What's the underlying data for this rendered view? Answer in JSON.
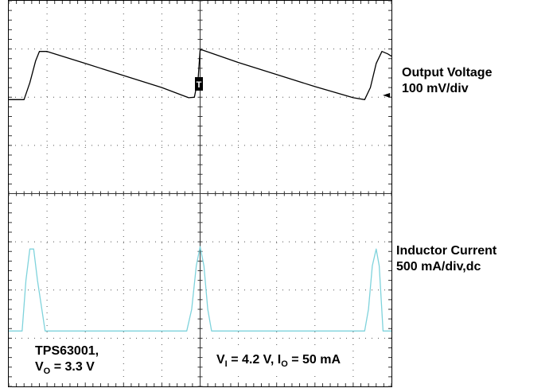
{
  "chart_data": {
    "type": "line",
    "title": "",
    "xlabel": "",
    "ylabel": "",
    "grid": true,
    "divisions": {
      "x": 10,
      "y": 8
    },
    "xlim": [
      0,
      10
    ],
    "ylim": [
      0,
      8
    ],
    "series": [
      {
        "name": "Output Voltage",
        "color": "#000000",
        "scale": "100 mV/div",
        "x": [
          0,
          0.4,
          0.55,
          0.7,
          0.8,
          1.0,
          2.0,
          3.0,
          4.0,
          4.7,
          4.85,
          4.95,
          5.0,
          5.05,
          6.0,
          7.0,
          8.0,
          9.0,
          9.3,
          9.45,
          9.6,
          9.75,
          9.9,
          10.0
        ],
        "y": [
          5.95,
          5.95,
          6.3,
          6.75,
          6.95,
          6.95,
          6.7,
          6.45,
          6.2,
          5.99,
          6.0,
          6.4,
          6.98,
          6.98,
          6.72,
          6.47,
          6.22,
          5.99,
          5.95,
          6.2,
          6.7,
          6.95,
          6.9,
          6.85
        ]
      },
      {
        "name": "Inductor Current",
        "color": "#7fd3dc",
        "scale": "500 mA/div,dc",
        "x": [
          0,
          0.35,
          0.45,
          0.55,
          0.65,
          0.75,
          0.95,
          4.65,
          4.78,
          4.9,
          5.0,
          5.1,
          5.2,
          5.3,
          9.3,
          9.4,
          9.5,
          9.6,
          9.68,
          9.78,
          10.0
        ],
        "y": [
          1.15,
          1.15,
          2.2,
          2.85,
          2.85,
          2.2,
          1.15,
          1.15,
          1.6,
          2.5,
          2.9,
          2.5,
          1.6,
          1.15,
          1.15,
          1.6,
          2.5,
          2.85,
          2.5,
          1.15,
          1.15
        ]
      }
    ],
    "annotations": {
      "output_voltage_name": "Output Voltage",
      "output_voltage_scale": "100 mV/div",
      "inductor_current_name": "Inductor Current",
      "inductor_current_scale": "500 mA/div,dc",
      "device_line1": "TPS63001,",
      "device_vo_prefix": "V",
      "device_vo_sub": "O",
      "device_vo_value": "= 3.3 V",
      "cond_v_prefix": "V",
      "cond_v_sub": "I",
      "cond_v_value": "= 4.2 V, I",
      "cond_i_sub": "O",
      "cond_i_value": "= 50 mA",
      "trigger_marker": "T",
      "marker_glyph": "◄"
    }
  }
}
